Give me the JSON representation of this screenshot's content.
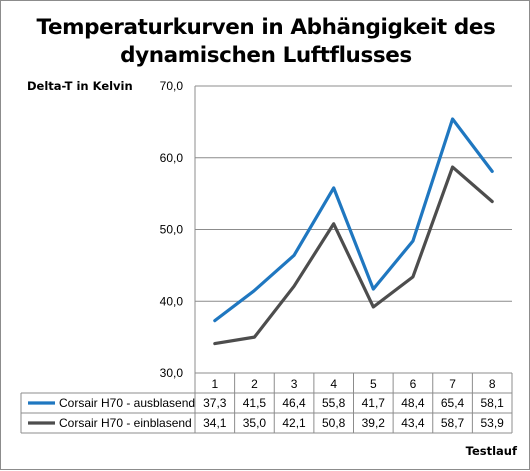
{
  "chart_data": {
    "type": "line",
    "title_lines": [
      "Temperaturkurven in Abhängigkeit des",
      "dynamischen Luftflusses"
    ],
    "ylabel": "Delta-T in Kelvin",
    "xlabel": "Testlauf",
    "ylim": [
      30,
      70
    ],
    "yticks": [
      "30,0",
      "40,0",
      "50,0",
      "60,0",
      "70,0"
    ],
    "categories": [
      "1",
      "2",
      "3",
      "4",
      "5",
      "6",
      "7",
      "8"
    ],
    "grid": "horizontal",
    "legend": "data-table",
    "series": [
      {
        "name": "Corsair H70 - ausblasend",
        "color": "#1f77c0",
        "values": [
          37.3,
          41.5,
          46.4,
          55.8,
          41.7,
          48.4,
          65.4,
          58.1
        ],
        "labels": [
          "37,3",
          "41,5",
          "46,4",
          "55,8",
          "41,7",
          "48,4",
          "65,4",
          "58,1"
        ]
      },
      {
        "name": "Corsair H70 - einblasend",
        "color": "#4d4d4d",
        "values": [
          34.1,
          35.0,
          42.1,
          50.8,
          39.2,
          43.4,
          58.7,
          53.9
        ],
        "labels": [
          "34,1",
          "35,0",
          "42,1",
          "50,8",
          "39,2",
          "43,4",
          "58,7",
          "53,9"
        ]
      }
    ]
  }
}
